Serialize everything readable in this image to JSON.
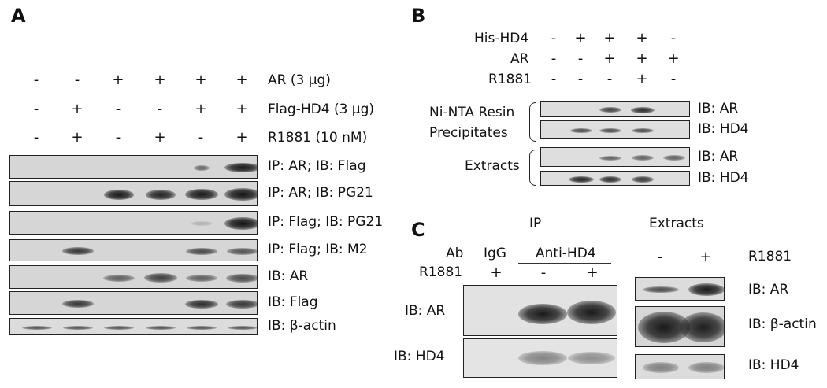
{
  "panels": {
    "a": "A",
    "b": "B",
    "c": "C"
  },
  "panelA": {
    "conditions": [
      {
        "label": "AR (3 μg)",
        "signs": [
          "-",
          "-",
          "+",
          "+",
          "+",
          "+"
        ]
      },
      {
        "label": "Flag-HD4 (3 μg)",
        "signs": [
          "-",
          "+",
          "-",
          "-",
          "+",
          "+"
        ]
      },
      {
        "label": "R1881 (10 nM)",
        "signs": [
          "-",
          "+",
          "-",
          "+",
          "-",
          "+"
        ]
      }
    ],
    "blots": [
      "IP: AR; IB: Flag",
      "IP: AR; IB: PG21",
      "IP: Flag; IB: PG21",
      "IP: Flag; IB: M2",
      "IB: AR",
      "IB: Flag",
      "IB: β-actin"
    ]
  },
  "panelB": {
    "conditions": [
      {
        "label": "His-HD4",
        "signs": [
          "-",
          "+",
          "+",
          "+",
          "-"
        ]
      },
      {
        "label": "AR",
        "signs": [
          "-",
          "-",
          "+",
          "+",
          "+"
        ]
      },
      {
        "label": "R1881",
        "signs": [
          "-",
          "-",
          "-",
          "+",
          "-"
        ]
      }
    ],
    "groups": [
      "Ni-NTA Resin\nPrecipitates",
      "Extracts"
    ],
    "group1_line1": "Ni-NTA Resin",
    "group1_line2": "Precipitates",
    "group2": "Extracts",
    "blots": [
      "IB: AR",
      "IB: HD4",
      "IB: AR",
      "IB: HD4"
    ]
  },
  "panelC": {
    "ip_header": "IP",
    "extracts_header": "Extracts",
    "ab_label": "Ab",
    "igg": "IgG",
    "anti_hd4": "Anti-HD4",
    "r1881_label_left": "R1881",
    "ip_r1881_signs": [
      "+",
      "-",
      "+"
    ],
    "ext_r1881_signs": [
      "-",
      "+"
    ],
    "r1881_label_right": "R1881",
    "ip_blots": [
      "IB: AR",
      "IB: HD4"
    ],
    "ext_blots": [
      "IB: AR",
      "IB: β-actin",
      "IB: HD4"
    ]
  }
}
